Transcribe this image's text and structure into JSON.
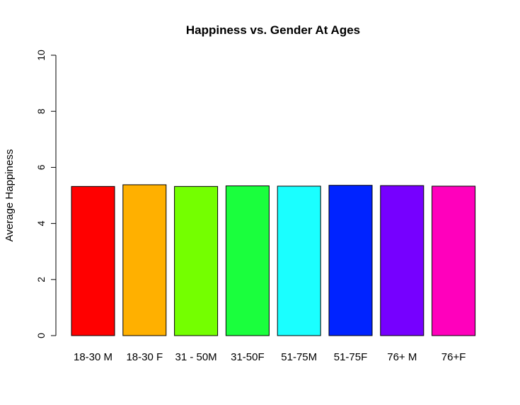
{
  "chart_data": {
    "type": "bar",
    "title": "Happiness vs. Gender At Ages",
    "xlabel": "",
    "ylabel": "Average Happiness",
    "ylim": [
      0,
      10
    ],
    "yticks": [
      "0",
      "2",
      "4",
      "6",
      "8",
      "10"
    ],
    "grid": false,
    "categories": [
      "18-30 M",
      "18-30 F",
      "31 - 50M",
      "31-50F",
      "51-75M",
      "51-75F",
      "76+ M",
      "76+F"
    ],
    "values": [
      5.32,
      5.38,
      5.32,
      5.34,
      5.33,
      5.36,
      5.35,
      5.33
    ],
    "colors": [
      "#ff0000",
      "#ffb000",
      "#74ff00",
      "#1aff3d",
      "#1affff",
      "#0023ff",
      "#7600ff",
      "#ff00bc"
    ]
  }
}
